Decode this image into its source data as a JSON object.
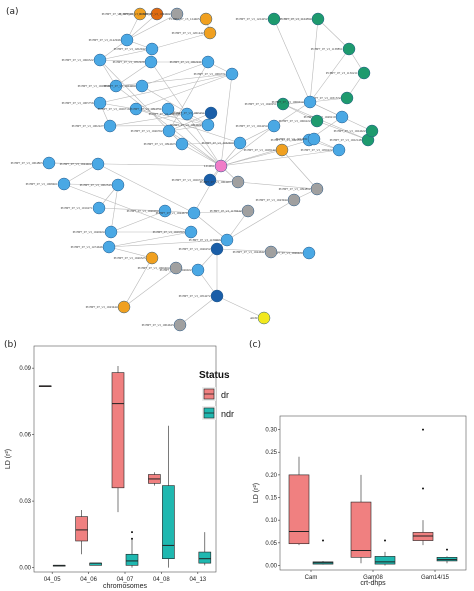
{
  "panels": {
    "a": "(a)",
    "b": "(b)",
    "c": "(c)"
  },
  "colors": {
    "node_blue": "#4aa8e4",
    "node_darkblue": "#1a5ea8",
    "node_green": "#1e9a6e",
    "node_orange": "#f0a020",
    "node_darkorange": "#e06a10",
    "node_gray": "#a0a0a0",
    "node_pink": "#f07cc8",
    "node_yellow": "#f2e81e",
    "edge": "#b8b8b8",
    "dr": "#f08080",
    "ndr": "#1fb8b0",
    "box_line": "#222222"
  },
  "chart_data": [
    {
      "type": "network",
      "nodes": [
        {
          "id": "n1",
          "label": "PCHP7_07_v3_1078944",
          "color": "orange"
        },
        {
          "id": "n2",
          "label": "PCHP7_07_v3_1102024",
          "color": "darkorange"
        },
        {
          "id": "n3",
          "label": "PCHP7_07_v3_1094462",
          "color": "gray"
        },
        {
          "id": "n4",
          "label": "PCHP7_07_v3_124465",
          "color": "orange"
        },
        {
          "id": "n5",
          "label": "PCHP7_07_v3_1224252",
          "color": "green"
        },
        {
          "id": "n6",
          "label": "PCHP7_07_v3_1124554",
          "color": "green"
        },
        {
          "id": "n7",
          "label": "PCHP7_07_v3_2142946",
          "color": "blue"
        },
        {
          "id": "n8",
          "label": "PCHP7_07_v3_1201442",
          "color": "orange"
        },
        {
          "id": "n9",
          "label": "PCHP7_07_v3_1202042",
          "color": "blue"
        },
        {
          "id": "n10",
          "label": "PCHP7_07_v3_1138851",
          "color": "green"
        },
        {
          "id": "n11",
          "label": "PCHP7_07_v3_1136211",
          "color": "green"
        },
        {
          "id": "n12",
          "label": "PCHP7_07_v3_1066322",
          "color": "blue"
        },
        {
          "id": "n13",
          "label": "PCHP7_07_v3_1052220",
          "color": "blue"
        },
        {
          "id": "n14",
          "label": "PCHP7_07_v3_1029954",
          "color": "blue"
        },
        {
          "id": "n15",
          "label": "PCHP7_07_v3_1024264",
          "color": "blue"
        },
        {
          "id": "n16",
          "label": "PCHP7_07_v3_1062241",
          "color": "blue"
        },
        {
          "id": "n17",
          "label": "PCHP7_07_v3_1006771",
          "color": "blue"
        },
        {
          "id": "n18",
          "label": "PCHP7_07_v3_1031572",
          "color": "green"
        },
        {
          "id": "n19",
          "label": "PCHP7_07_v3_1005756",
          "color": "blue"
        },
        {
          "id": "n20",
          "label": "PCHP7_07_v3_1026716",
          "color": "blue"
        },
        {
          "id": "n21",
          "label": "PCHP7_07_v3_1094751",
          "color": "blue"
        },
        {
          "id": "n22",
          "label": "PCHP7_07_v3_1004022",
          "color": "blue"
        },
        {
          "id": "n23",
          "label": "PCHP7_07_v3_1002227",
          "color": "blue"
        },
        {
          "id": "n24",
          "label": "PCHP7_07_v3_1060651",
          "color": "blue"
        },
        {
          "id": "n25",
          "label": "PCHP7_07_v3_1065251",
          "color": "darkblue"
        },
        {
          "id": "n26",
          "label": "PCHP7_07_v3_1046762",
          "color": "blue"
        },
        {
          "id": "n27",
          "label": "PCHP7_07_v3_1094023",
          "color": "blue"
        },
        {
          "id": "n28",
          "label": "PCHP7_07_v3_1040251",
          "color": "green"
        },
        {
          "id": "n29",
          "label": "PCHP7_07_v3_1066014",
          "color": "blue"
        },
        {
          "id": "n30",
          "label": "PCHP7_07_v3_1049210",
          "color": "blue"
        },
        {
          "id": "n31",
          "label": "PCHP7_07_v3_1005331",
          "color": "blue"
        },
        {
          "id": "n32",
          "label": "PCHP7_07_v3_1066222",
          "color": "green"
        },
        {
          "id": "n33",
          "label": "PCHP7_07_v3_1024031",
          "color": "blue"
        },
        {
          "id": "n34",
          "label": "PCHP7_07_v3_1056222",
          "color": "blue"
        },
        {
          "id": "n35",
          "label": "PCHP7_07_v3_1022148",
          "color": "green"
        },
        {
          "id": "n36",
          "label": "PCHP7_07_v3_1024254",
          "color": "blue"
        },
        {
          "id": "n37",
          "label": "PCHP7_07_v3_1032464",
          "color": "blue"
        },
        {
          "id": "n38",
          "label": "LU4651",
          "color": "pink"
        },
        {
          "id": "n39",
          "label": "PCHP7_07_v3_1026722",
          "color": "darkblue"
        },
        {
          "id": "n40",
          "label": "PCHP7_07_v3_1028144",
          "color": "orange"
        },
        {
          "id": "n41",
          "label": "PCHP7_07_v3_1004863",
          "color": "blue"
        },
        {
          "id": "n42",
          "label": "PCHP7_07_v3_1044462",
          "color": "blue"
        },
        {
          "id": "n43",
          "label": "PCHP7_07_v3_1064207",
          "color": "gray"
        },
        {
          "id": "n44",
          "label": "PCHP7_07_v3_1068461",
          "color": "blue"
        },
        {
          "id": "n45",
          "label": "PCHP7_07_v3_1002543",
          "color": "blue"
        },
        {
          "id": "n46",
          "label": "PCHP7_07_v3_1094852",
          "color": "gray"
        },
        {
          "id": "n47",
          "label": "PCHP7_07_v3_1016271",
          "color": "blue"
        },
        {
          "id": "n48",
          "label": "PCHP7_07_v3_1046264",
          "color": "blue"
        },
        {
          "id": "n49",
          "label": "PCHP7_07_v3_1044679",
          "color": "blue"
        },
        {
          "id": "n50",
          "label": "PCHP7_07_v3_1178442",
          "color": "gray"
        },
        {
          "id": "n51",
          "label": "PCHP7_07_v3_1046924",
          "color": "blue"
        },
        {
          "id": "n52",
          "label": "PCHP7_07_v3_1029763",
          "color": "blue"
        },
        {
          "id": "n53",
          "label": "PCHP7_07_v3_1179963",
          "color": "blue"
        },
        {
          "id": "n54",
          "label": "PCHP7_07_v3_1043944",
          "color": "gray"
        },
        {
          "id": "n55",
          "label": "PCHP7_07_v3_1046252",
          "color": "darkblue"
        },
        {
          "id": "n56",
          "label": "PCHP7_07_v3_1474646",
          "color": "blue"
        },
        {
          "id": "n57",
          "label": "PCHP7_07_v3_1046325",
          "color": "orange"
        },
        {
          "id": "n58",
          "label": "PCHP7_07_v3_1046022",
          "color": "blue"
        },
        {
          "id": "n59",
          "label": "PCHP7_07_v3_1066464",
          "color": "gray"
        },
        {
          "id": "n60",
          "label": "PCHP7_07_v3_1046424",
          "color": "blue"
        },
        {
          "id": "n61",
          "label": "PCHP7_07_v3_1054272",
          "color": "darkblue"
        },
        {
          "id": "n62",
          "label": "PCHP7_07_v3_1043444",
          "color": "orange"
        },
        {
          "id": "n63",
          "label": "PCHP7_07_v3_1004643",
          "color": "gray"
        },
        {
          "id": "n64",
          "label": "AKSI",
          "color": "yellow"
        },
        {
          "id": "n65",
          "label": "PCHP7_07_v3_1044642",
          "color": "gray"
        },
        {
          "id": "n66",
          "label": "PCHP7_07_v3_1024622",
          "color": "green"
        }
      ],
      "edges": [
        [
          "n1",
          "n2"
        ],
        [
          "n2",
          "n3"
        ],
        [
          "n1",
          "n7"
        ],
        [
          "n2",
          "n7"
        ],
        [
          "n3",
          "n7"
        ],
        [
          "n4",
          "n8"
        ],
        [
          "n7",
          "n9"
        ],
        [
          "n7",
          "n12"
        ],
        [
          "n9",
          "n12"
        ],
        [
          "n8",
          "n9"
        ],
        [
          "n12",
          "n13"
        ],
        [
          "n13",
          "n14"
        ],
        [
          "n12",
          "n14"
        ],
        [
          "n14",
          "n15"
        ],
        [
          "n13",
          "n16"
        ],
        [
          "n15",
          "n16"
        ],
        [
          "n16",
          "n17"
        ],
        [
          "n14",
          "n17"
        ],
        [
          "n17",
          "n19"
        ],
        [
          "n19",
          "n20"
        ],
        [
          "n17",
          "n20"
        ],
        [
          "n20",
          "n21"
        ],
        [
          "n21",
          "n22"
        ],
        [
          "n20",
          "n22"
        ],
        [
          "n22",
          "n23"
        ],
        [
          "n23",
          "n24"
        ],
        [
          "n24",
          "n25"
        ],
        [
          "n25",
          "n26"
        ],
        [
          "n22",
          "n26"
        ],
        [
          "n26",
          "n27"
        ],
        [
          "n27",
          "n38"
        ],
        [
          "n26",
          "n38"
        ],
        [
          "n38",
          "n39"
        ],
        [
          "n38",
          "n40"
        ],
        [
          "n38",
          "n37"
        ],
        [
          "n37",
          "n36"
        ],
        [
          "n36",
          "n29"
        ],
        [
          "n29",
          "n30"
        ],
        [
          "n30",
          "n31"
        ],
        [
          "n31",
          "n33"
        ],
        [
          "n33",
          "n34"
        ],
        [
          "n34",
          "n38"
        ],
        [
          "n31",
          "n34"
        ],
        [
          "n29",
          "n28"
        ],
        [
          "n28",
          "n32"
        ],
        [
          "n32",
          "n35"
        ],
        [
          "n28",
          "n35"
        ],
        [
          "n5",
          "n6"
        ],
        [
          "n6",
          "n10"
        ],
        [
          "n10",
          "n11"
        ],
        [
          "n5",
          "n29"
        ],
        [
          "n6",
          "n29"
        ],
        [
          "n10",
          "n29"
        ],
        [
          "n11",
          "n18"
        ],
        [
          "n18",
          "n29"
        ],
        [
          "n29",
          "n30"
        ],
        [
          "n30",
          "n66"
        ],
        [
          "n38",
          "n41"
        ],
        [
          "n41",
          "n42"
        ],
        [
          "n42",
          "n44"
        ],
        [
          "n44",
          "n45"
        ],
        [
          "n45",
          "n47"
        ],
        [
          "n47",
          "n48"
        ],
        [
          "n48",
          "n51"
        ],
        [
          "n51",
          "n52"
        ],
        [
          "n52",
          "n56"
        ],
        [
          "n38",
          "n49"
        ],
        [
          "n49",
          "n50"
        ],
        [
          "n50",
          "n53"
        ],
        [
          "n53",
          "n55"
        ],
        [
          "n55",
          "n58"
        ],
        [
          "n58",
          "n61"
        ],
        [
          "n61",
          "n63"
        ],
        [
          "n61",
          "n64"
        ],
        [
          "n55",
          "n61"
        ],
        [
          "n56",
          "n57"
        ],
        [
          "n57",
          "n62"
        ],
        [
          "n62",
          "n59"
        ],
        [
          "n38",
          "n43"
        ],
        [
          "n43",
          "n46"
        ],
        [
          "n46",
          "n54"
        ],
        [
          "n54",
          "n53"
        ],
        [
          "n49",
          "n53"
        ],
        [
          "n42",
          "n49"
        ],
        [
          "n48",
          "n49"
        ],
        [
          "n21",
          "n38"
        ],
        [
          "n24",
          "n38"
        ],
        [
          "n19",
          "n23"
        ],
        [
          "n15",
          "n22"
        ],
        [
          "n27",
          "n37"
        ],
        [
          "n36",
          "n38"
        ],
        [
          "n33",
          "n38"
        ],
        [
          "n39",
          "n43"
        ],
        [
          "n40",
          "n46"
        ],
        [
          "n44",
          "n52"
        ],
        [
          "n45",
          "n51"
        ],
        [
          "n53",
          "n56"
        ],
        [
          "n60",
          "n65"
        ],
        [
          "n55",
          "n60"
        ],
        [
          "n12",
          "n27"
        ],
        [
          "n16",
          "n26"
        ],
        [
          "n13",
          "n24"
        ],
        [
          "n14",
          "n38"
        ],
        [
          "n17",
          "n38"
        ],
        [
          "n20",
          "n37"
        ]
      ]
    },
    {
      "type": "box",
      "xlabel": "chromosomes",
      "ylabel": "LD (r²)",
      "categories": [
        "04_05",
        "04_06",
        "04_07",
        "04_08",
        "04_13"
      ],
      "ylim": [
        -0.002,
        0.1
      ],
      "yticks": [
        0.0,
        0.03,
        0.06,
        0.09
      ],
      "ytick_labels": [
        "0.00",
        "0.03",
        "0.06",
        "0.09"
      ],
      "legend": {
        "title": "Status",
        "entries": [
          "dr",
          "ndr"
        ],
        "position": "top-right"
      },
      "series": [
        {
          "name": "dr",
          "boxes": [
            {
              "category": "04_05",
              "min": 0.082,
              "q1": 0.082,
              "median": 0.082,
              "q3": 0.082,
              "max": 0.082,
              "outliers": []
            },
            {
              "category": "04_06",
              "min": 0.006,
              "q1": 0.012,
              "median": 0.017,
              "q3": 0.023,
              "max": 0.026,
              "outliers": []
            },
            {
              "category": "04_07",
              "min": 0.025,
              "q1": 0.036,
              "median": 0.074,
              "q3": 0.088,
              "max": 0.091,
              "outliers": []
            },
            {
              "category": "04_08",
              "min": 0.037,
              "q1": 0.038,
              "median": 0.04,
              "q3": 0.042,
              "max": 0.043,
              "outliers": []
            }
          ]
        },
        {
          "name": "ndr",
          "boxes": [
            {
              "category": "04_05",
              "min": 0.001,
              "q1": 0.001,
              "median": 0.001,
              "q3": 0.001,
              "max": 0.001,
              "outliers": []
            },
            {
              "category": "04_06",
              "min": 0.001,
              "q1": 0.001,
              "median": 0.002,
              "q3": 0.002,
              "max": 0.002,
              "outliers": []
            },
            {
              "category": "04_07",
              "min": 0.0,
              "q1": 0.001,
              "median": 0.003,
              "q3": 0.006,
              "max": 0.013,
              "outliers": [
                0.013,
                0.016
              ]
            },
            {
              "category": "04_08",
              "min": 0.0,
              "q1": 0.004,
              "median": 0.01,
              "q3": 0.037,
              "max": 0.064,
              "outliers": []
            },
            {
              "category": "04_13",
              "min": 0.001,
              "q1": 0.002,
              "median": 0.004,
              "q3": 0.007,
              "max": 0.016,
              "outliers": []
            }
          ]
        }
      ]
    },
    {
      "type": "box",
      "xlabel": "crt-dhps",
      "ylabel": "LD (r²)",
      "categories": [
        "Cam",
        "Gam08",
        "Gam14/15"
      ],
      "ylim": [
        -0.01,
        0.33
      ],
      "yticks": [
        0.0,
        0.05,
        0.1,
        0.15,
        0.2,
        0.25,
        0.3
      ],
      "ytick_labels": [
        "0.00",
        "0.05",
        "0.10",
        "0.15",
        "0.20",
        "0.25",
        "0.30"
      ],
      "series": [
        {
          "name": "dr",
          "boxes": [
            {
              "category": "Cam",
              "min": 0.045,
              "q1": 0.048,
              "median": 0.075,
              "q3": 0.2,
              "max": 0.24,
              "outliers": []
            },
            {
              "category": "Gam08",
              "min": 0.005,
              "q1": 0.018,
              "median": 0.033,
              "q3": 0.14,
              "max": 0.2,
              "outliers": []
            },
            {
              "category": "Gam14/15",
              "min": 0.045,
              "q1": 0.055,
              "median": 0.065,
              "q3": 0.073,
              "max": 0.1,
              "outliers": [
                0.17,
                0.3
              ]
            }
          ]
        },
        {
          "name": "ndr",
          "boxes": [
            {
              "category": "Cam",
              "min": 0.002,
              "q1": 0.003,
              "median": 0.006,
              "q3": 0.008,
              "max": 0.01,
              "outliers": [
                0.055
              ]
            },
            {
              "category": "Gam08",
              "min": 0.0,
              "q1": 0.003,
              "median": 0.008,
              "q3": 0.02,
              "max": 0.03,
              "outliers": [
                0.055
              ]
            },
            {
              "category": "Gam14/15",
              "min": 0.005,
              "q1": 0.01,
              "median": 0.013,
              "q3": 0.018,
              "max": 0.02,
              "outliers": [
                0.035
              ]
            }
          ]
        }
      ]
    }
  ]
}
